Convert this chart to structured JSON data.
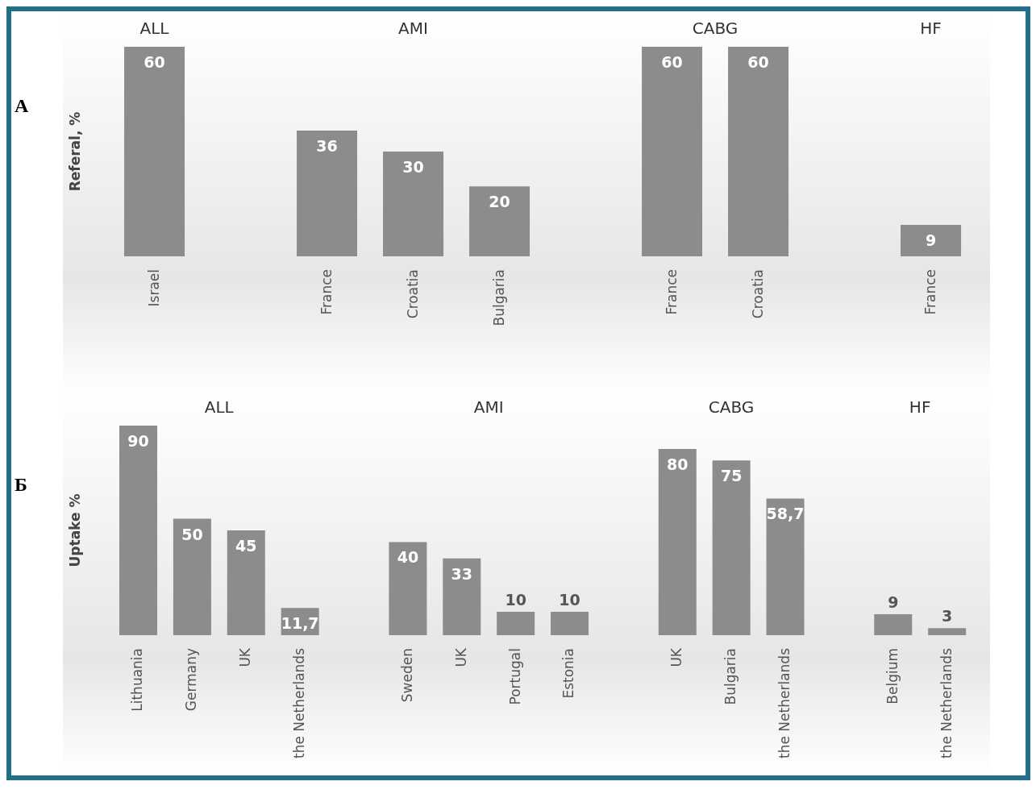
{
  "chart_data": [
    {
      "type": "bar",
      "title": "А",
      "ylabel": "Referal, %",
      "categories": [
        "Israel",
        null,
        "France",
        "Croatia",
        "Bulgaria",
        null,
        "France",
        "Croatia",
        null,
        "France"
      ],
      "values": [
        60,
        null,
        36,
        30,
        20,
        null,
        60,
        60,
        null,
        9
      ],
      "color": "#8c8c8c",
      "data_labels": true,
      "annotations": [
        "ALL",
        "AMI",
        "CABG",
        "HF"
      ]
    },
    {
      "type": "bar",
      "title": "Б",
      "ylabel": "Uptake %",
      "categories": [
        "Lithuania",
        "Germany",
        "UK",
        "the Netherlands",
        null,
        "Sweden",
        "UK",
        "Portugal",
        "Estonia",
        null,
        "UK",
        "Bulgaria",
        "the Netherlands",
        null,
        "Belgium",
        "the Netherlands"
      ],
      "values": [
        90,
        50,
        45,
        11.7,
        null,
        40,
        33,
        10,
        10,
        null,
        80,
        75,
        58.7,
        null,
        9,
        3
      ],
      "value_labels": [
        "90",
        "50",
        "45",
        "11,7",
        null,
        "40",
        "33",
        "10",
        "10",
        null,
        "80",
        "75",
        "58,7",
        null,
        "9",
        "3"
      ],
      "color": "#8c8c8c",
      "annotations": [
        "ALL",
        "AMI",
        "CABG",
        "HF"
      ]
    }
  ]
}
